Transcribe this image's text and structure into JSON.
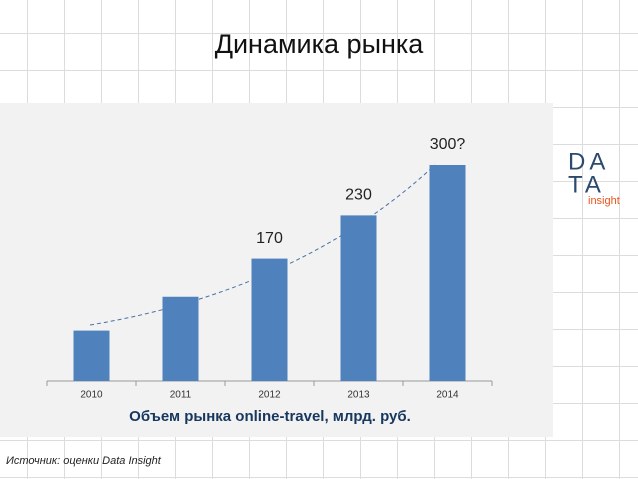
{
  "chart_data": {
    "type": "bar",
    "title": "Динамика рынка",
    "categories": [
      "2010",
      "2011",
      "2012",
      "2013",
      "2014"
    ],
    "values": [
      70,
      117,
      170,
      230,
      300
    ],
    "value_labels": [
      null,
      null,
      "170",
      "230",
      "300?"
    ],
    "color": "#4f81bd",
    "x_label": "Объем рынка online-travel, млрд. руб."
  },
  "logo": {
    "line1": "DA",
    "line2": "TA",
    "tagline": "insight"
  },
  "source": "Источник: оценки Data Insight"
}
